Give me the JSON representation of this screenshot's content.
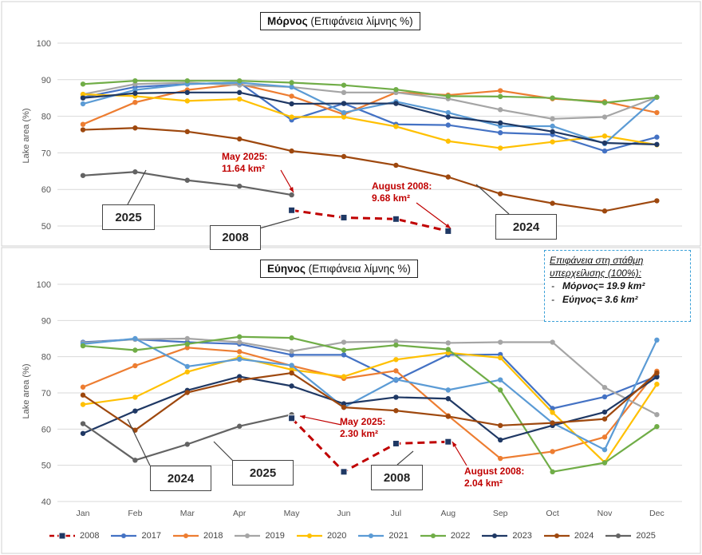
{
  "chart_data": [
    {
      "type": "line",
      "title_bold": "Μόρνος",
      "title_rest": "(Επιφάνεια λίμνης %)",
      "ylabel": "Lake area (%)",
      "ylim": [
        50,
        100
      ],
      "yticks": [
        "50",
        "60",
        "70",
        "80",
        "90",
        "100"
      ],
      "series": [
        {
          "name": "2017",
          "values": [
            85.2,
            88.0,
            88.8,
            89.2,
            79.0,
            83.5,
            77.8,
            77.6,
            75.5,
            75.0,
            70.5,
            74.3
          ]
        },
        {
          "name": "2018",
          "values": [
            77.8,
            83.8,
            87.2,
            88.8,
            85.5,
            80.5,
            86.5,
            85.8,
            87.0,
            84.8,
            84.0,
            81.0
          ]
        },
        {
          "name": "2019",
          "values": [
            86.0,
            88.8,
            89.2,
            88.5,
            88.0,
            86.5,
            86.5,
            84.8,
            81.8,
            79.3,
            79.8,
            85.2
          ]
        },
        {
          "name": "2020",
          "values": [
            86.0,
            85.5,
            84.2,
            84.7,
            79.8,
            79.8,
            77.2,
            73.2,
            71.3,
            73.0,
            74.6,
            72.2
          ]
        },
        {
          "name": "2021",
          "values": [
            83.4,
            87.2,
            88.8,
            89.2,
            88.0,
            81.0,
            84.0,
            81.0,
            77.3,
            77.3,
            72.5,
            85.2
          ]
        },
        {
          "name": "2022",
          "values": [
            88.8,
            89.7,
            89.7,
            89.7,
            89.2,
            88.5,
            87.3,
            85.5,
            85.4,
            85.0,
            83.7,
            85.2
          ]
        },
        {
          "name": "2023",
          "values": [
            85.0,
            86.3,
            86.5,
            86.5,
            83.4,
            83.5,
            83.5,
            79.8,
            78.2,
            75.8,
            72.7,
            72.3
          ]
        },
        {
          "name": "2024",
          "values": [
            76.3,
            76.8,
            75.8,
            73.8,
            70.5,
            69.0,
            66.6,
            63.4,
            58.8,
            56.2,
            54.1,
            56.9
          ]
        },
        {
          "name": "2025",
          "values": [
            63.8,
            64.8,
            62.5,
            60.9,
            58.5,
            null,
            null,
            null,
            null,
            null,
            null,
            null
          ]
        },
        {
          "name": "2008",
          "values": [
            null,
            null,
            null,
            null,
            54.3,
            52.3,
            51.9,
            48.6,
            null,
            null,
            null,
            null
          ]
        }
      ],
      "callouts": [
        "2025",
        "2008",
        "2024"
      ],
      "annotations": [
        {
          "line1": "May 2025:",
          "line2": "11.64 km²"
        },
        {
          "line1": "August 2008:",
          "line2": "9.68 km²"
        }
      ]
    },
    {
      "type": "line",
      "title_bold": "Εύηνος",
      "title_rest": "(Επιφάνεια λίμνης %)",
      "ylabel": "Lake area (%)",
      "ylim": [
        40,
        100
      ],
      "yticks": [
        "40",
        "50",
        "60",
        "70",
        "80",
        "90",
        "100"
      ],
      "categories": [
        "Jan",
        "Feb",
        "Mar",
        "Apr",
        "May",
        "Jun",
        "Jul",
        "Aug",
        "Sep",
        "Oct",
        "Nov",
        "Dec"
      ],
      "series": [
        {
          "name": "2017",
          "values": [
            84.0,
            84.8,
            84.0,
            83.5,
            80.5,
            80.5,
            73.5,
            80.5,
            80.6,
            65.7,
            68.9,
            74.6
          ]
        },
        {
          "name": "2018",
          "values": [
            71.6,
            77.5,
            82.5,
            81.4,
            77.5,
            74.0,
            76.1,
            63.7,
            51.9,
            53.8,
            57.8,
            76.0
          ]
        },
        {
          "name": "2019",
          "values": [
            83.8,
            84.8,
            85.0,
            84.0,
            81.5,
            84.0,
            84.2,
            83.8,
            84.0,
            84.0,
            71.5,
            64.0
          ]
        },
        {
          "name": "2020",
          "values": [
            66.8,
            68.8,
            75.8,
            79.8,
            76.4,
            74.5,
            79.2,
            81.1,
            79.7,
            64.6,
            50.8,
            72.4
          ]
        },
        {
          "name": "2021",
          "values": [
            83.5,
            85.0,
            77.3,
            79.3,
            77.6,
            66.0,
            73.7,
            70.8,
            73.6,
            61.7,
            54.3,
            84.6
          ]
        },
        {
          "name": "2022",
          "values": [
            83.0,
            81.8,
            83.5,
            85.5,
            85.2,
            81.8,
            83.2,
            82.0,
            70.8,
            48.2,
            50.7,
            60.7
          ]
        },
        {
          "name": "2023",
          "values": [
            58.8,
            65.0,
            70.7,
            74.5,
            71.9,
            67.0,
            68.8,
            68.4,
            57.0,
            61.0,
            64.7,
            74.4
          ]
        },
        {
          "name": "2024",
          "values": [
            69.4,
            59.7,
            70.1,
            73.5,
            75.5,
            66.0,
            65.1,
            63.5,
            61.0,
            61.7,
            62.8,
            75.5
          ]
        },
        {
          "name": "2025",
          "values": [
            61.5,
            51.4,
            55.8,
            60.8,
            64.0,
            null,
            null,
            null,
            null,
            null,
            null,
            null
          ]
        },
        {
          "name": "2008",
          "values": [
            null,
            null,
            null,
            null,
            63.0,
            48.2,
            56.0,
            56.5,
            null,
            null,
            null,
            null
          ]
        }
      ],
      "callouts": [
        "2024",
        "2025",
        "2008"
      ],
      "annotations": [
        {
          "line1": "May 2025:",
          "line2": "2.30 km²"
        },
        {
          "line1": "August 2008:",
          "line2": "2.04 km²"
        }
      ]
    }
  ],
  "series_colors": {
    "2008": "#c00000",
    "2017": "#4472c4",
    "2018": "#ed7d31",
    "2019": "#a5a5a5",
    "2020": "#ffc000",
    "2021": "#5b9bd5",
    "2022": "#70ad47",
    "2023": "#1f3864",
    "2024": "#9e480e",
    "2025": "#636363"
  },
  "legend": [
    "2008",
    "2017",
    "2018",
    "2019",
    "2020",
    "2021",
    "2022",
    "2023",
    "2024",
    "2025"
  ],
  "info_box": {
    "title_line1": "Επιφάνεια στη στάθμη",
    "title_line2": "υπερχείλισης (100%):",
    "item1": "Μόρνος= 19.9 km²",
    "item2": "Εύηνος= 3.6 km²"
  }
}
